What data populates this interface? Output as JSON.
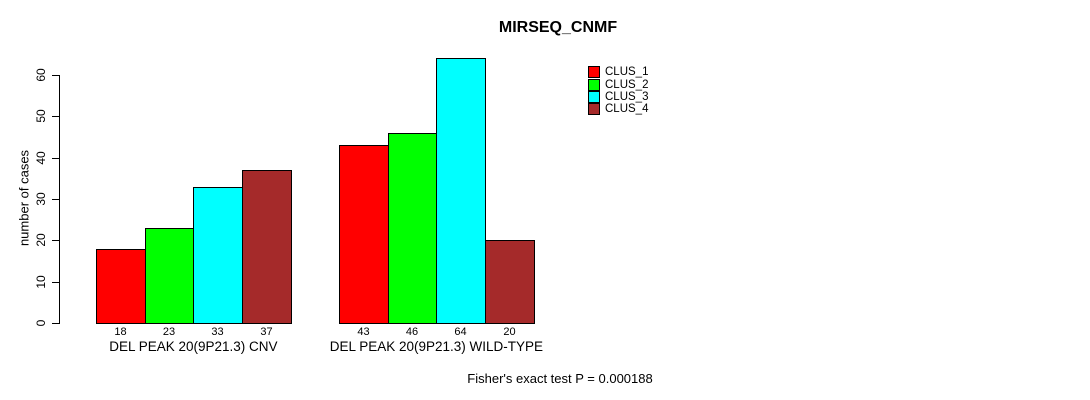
{
  "title": "MIRSEQ_CNMF",
  "chart_data": {
    "type": "bar",
    "title": "MIRSEQ_CNMF",
    "ylabel": "number of cases",
    "xlabel": "",
    "categories": [
      "DEL PEAK 20(9P21.3) CNV",
      "DEL PEAK 20(9P21.3) WILD-TYPE"
    ],
    "series": [
      {
        "name": "CLUS_1",
        "color": "#FF0000",
        "values": [
          18,
          43
        ]
      },
      {
        "name": "CLUS_2",
        "color": "#00FF00",
        "values": [
          23,
          46
        ]
      },
      {
        "name": "CLUS_3",
        "color": "#00FFFF",
        "values": [
          33,
          64
        ]
      },
      {
        "name": "CLUS_4",
        "color": "#A52A2A",
        "values": [
          37,
          20
        ]
      }
    ],
    "yticks": [
      0,
      10,
      20,
      30,
      40,
      50,
      60
    ],
    "ylim": [
      0,
      66
    ],
    "grid": false,
    "legend_position": "top-right",
    "bar_value_labels_shown": true
  },
  "footer": {
    "note": "Fisher's exact test P = 0.000188"
  }
}
